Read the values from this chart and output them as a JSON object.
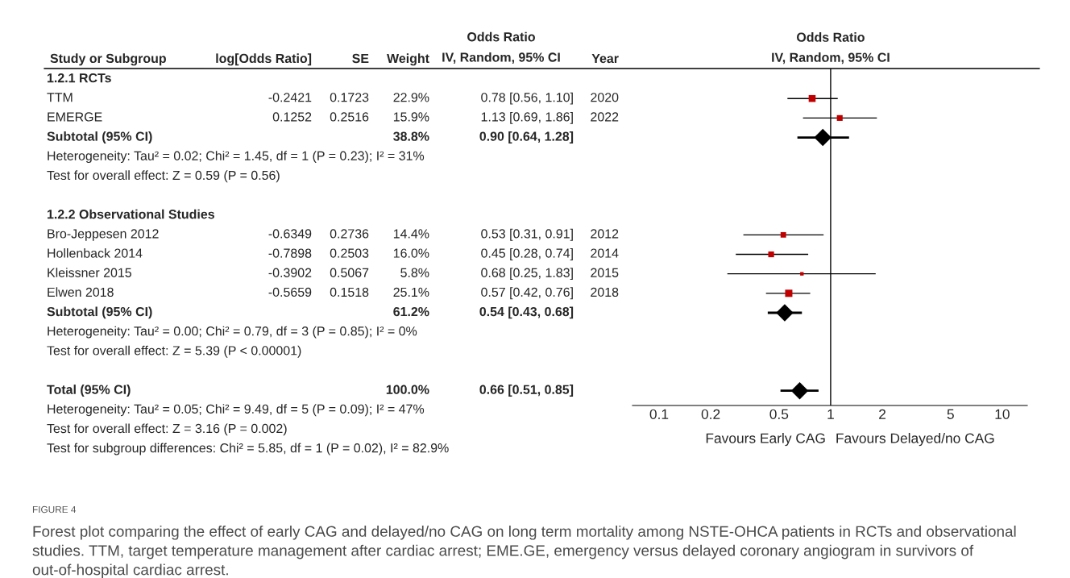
{
  "chart_data": [
    {
      "type": "other",
      "ylabel": "Study or Subgroup",
      "categories": [
        "log[Odds Ratio]",
        "SE",
        "Weight",
        "Odds Ratio\nIV, Random, 95% CI",
        "Year"
      ],
      "y_categories": [
        "1.2.1 RCTs",
        "TTM",
        "EMERGE",
        "Subtotal (95% CI)",
        "Heterogeneity: Tau² = 0.02; Chi² = 1.45, df = 1 (P = 0.23); I² = 31%",
        "Test for overall effect: Z = 0.59 (P = 0.56)",
        null,
        "1.2.2 Observational Studies",
        "Bro-Jeppesen 2012",
        "Hollenback 2014",
        "Kleissner 2015",
        "Elwen 2018",
        "Subtotal (95% CI)",
        "Heterogeneity: Tau² = 0.00; Chi² = 0.79, df = 3 (P = 0.85); I² = 0%",
        "Test for overall effect: Z = 5.39 (P < 0.00001)",
        null,
        "Total (95% CI)",
        "Heterogeneity: Tau² = 0.05; Chi² = 9.49, df = 5 (P = 0.09); I² = 47%",
        "Test for overall effect: Z = 3.16 (P = 0.002)",
        "Test for subgroup differences: Chi² = 5.85, df = 1 (P = 0.02), I² = 82.9%"
      ],
      "cell_labels": [
        [
          null,
          null,
          null,
          null,
          null
        ],
        [
          "-0.2421",
          "0.1723",
          "22.9%",
          "0.78 [0.56, 1.10]",
          "2020"
        ],
        [
          "0.1252",
          "0.2516",
          "15.9%",
          "1.13 [0.69, 1.86]",
          "2022"
        ],
        [
          null,
          null,
          "38.8%",
          "0.90 [0.64, 1.28]",
          null
        ],
        [
          null,
          null,
          null,
          null,
          null
        ],
        [
          null,
          null,
          null,
          null,
          null
        ],
        [
          null,
          null,
          null,
          null,
          null
        ],
        [
          null,
          null,
          null,
          null,
          null
        ],
        [
          "-0.6349",
          "0.2736",
          "14.4%",
          "0.53 [0.31, 0.91]",
          "2012"
        ],
        [
          "-0.7898",
          "0.2503",
          "16.0%",
          "0.45 [0.28, 0.74]",
          "2014"
        ],
        [
          "-0.3902",
          "0.5067",
          "5.8%",
          "0.68 [0.25, 1.83]",
          "2015"
        ],
        [
          "-0.5659",
          "0.1518",
          "25.1%",
          "0.57 [0.42, 0.76]",
          "2018"
        ],
        [
          null,
          null,
          "61.2%",
          "0.54 [0.43, 0.68]",
          null
        ],
        [
          null,
          null,
          null,
          null,
          null
        ],
        [
          null,
          null,
          null,
          null,
          null
        ],
        [
          null,
          null,
          null,
          null,
          null
        ],
        [
          null,
          null,
          "100.0%",
          "0.66 [0.51, 0.85]",
          null
        ],
        [
          null,
          null,
          null,
          null,
          null
        ],
        [
          null,
          null,
          null,
          null,
          null
        ],
        [
          null,
          null,
          null,
          null,
          null
        ]
      ],
      "annotations": [
        "FIGURE 4",
        "Forest plot comparing the effect of early CAG and delayed/no CAG on long term mortality among NSTE-OHCA patients in RCTs and observational studies. TTM, target temperature management after cardiac arrest; EME.GE, emergency versus delayed coronary angiogram in survivors of out-of-hospital cardiac arrest."
      ]
    },
    {
      "type": "scatter",
      "orientation": "horizontal",
      "title": "Odds Ratio",
      "subtitle": "IV, Random, 95% CI",
      "categories": [
        null,
        null,
        null,
        null,
        null,
        null,
        null,
        null,
        null,
        null,
        null,
        null,
        null,
        null,
        null,
        null,
        null
      ],
      "tick_labels": "x",
      "log": "x",
      "xlim": [
        0.07,
        14
      ],
      "xticks": [
        0.1,
        0.2,
        0.5,
        1,
        2,
        5,
        10
      ],
      "ref_lines": [
        {
          "axis": "x",
          "value": 1,
          "color": "#000000"
        }
      ],
      "series": [
        {
          "marker": "square",
          "color": "#c00000",
          "values": [
            null,
            0.78,
            1.13,
            null,
            null,
            null,
            null,
            null,
            0.53,
            0.45,
            0.68,
            0.57,
            null,
            null,
            null,
            null,
            null
          ],
          "errors": [
            null,
            [
              0.56,
              1.1
            ],
            [
              0.69,
              1.86
            ],
            null,
            null,
            null,
            null,
            null,
            [
              0.31,
              0.91
            ],
            [
              0.28,
              0.74
            ],
            [
              0.25,
              1.83
            ],
            [
              0.42,
              0.76
            ],
            null,
            null,
            null,
            null,
            null
          ],
          "sizes": [
            null,
            0.912,
            0.633,
            null,
            null,
            null,
            null,
            null,
            0.574,
            0.637,
            0.231,
            1,
            null,
            null,
            null,
            null,
            null
          ]
        },
        {
          "marker": "diamond",
          "color": "#000000",
          "values": [
            null,
            null,
            null,
            0.9,
            null,
            null,
            null,
            null,
            null,
            null,
            null,
            null,
            0.54,
            null,
            null,
            null,
            0.66
          ],
          "errors": [
            null,
            null,
            null,
            [
              0.64,
              1.28
            ],
            null,
            null,
            null,
            null,
            null,
            null,
            null,
            null,
            [
              0.43,
              0.68
            ],
            null,
            null,
            null,
            [
              0.51,
              0.85
            ]
          ]
        }
      ],
      "annotations": [
        "Favours Early CAG",
        "Favours Delayed/no CAG"
      ]
    }
  ]
}
